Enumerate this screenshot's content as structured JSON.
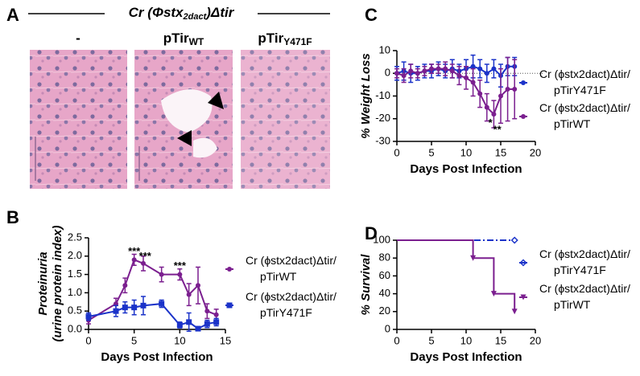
{
  "panels": [
    "A",
    "B",
    "C",
    "D"
  ],
  "panel_a": {
    "header": [
      "Cr",
      " (Φ",
      "stx",
      "2dact",
      ")Δ",
      "tir"
    ],
    "images": [
      {
        "label": [
          "-"
        ]
      },
      {
        "label": [
          "pTir",
          "WT"
        ]
      },
      {
        "label": [
          "pTir",
          "Y471F"
        ]
      }
    ]
  },
  "chart_data": [
    {
      "type": "line",
      "xlabel": "Days Post Infection",
      "ylabel": [
        "Proteinuria",
        "(urine protein index)"
      ],
      "xlim": [
        0,
        15
      ],
      "xticks": [
        0,
        5,
        10,
        15
      ],
      "ylim": [
        0,
        2.5
      ],
      "yticks": [
        {
          "value": 0,
          "label": "0.0"
        },
        0.5,
        {
          "value": 1,
          "label": "1.0"
        },
        1.5,
        {
          "value": 2,
          "label": "2.0"
        },
        2.5
      ],
      "series": [
        {
          "name": "Cr (ϕstx2dact)Δtir/ pTirWT",
          "color": "#7b1f8f",
          "marker": "circle",
          "x": [
            0,
            3,
            4,
            5,
            6,
            8,
            10,
            11,
            12,
            13,
            14
          ],
          "values": [
            0.25,
            0.7,
            1.2,
            1.9,
            1.8,
            1.5,
            1.5,
            0.95,
            1.2,
            0.5,
            0.4
          ],
          "errors": [
            0.1,
            0.15,
            0.2,
            0.15,
            0.2,
            0.2,
            0.15,
            0.3,
            0.5,
            0.2,
            0.15
          ]
        },
        {
          "name": "Cr (ϕstx2dact)Δtir/ pTirY471F",
          "color": "#1b33c9",
          "marker": "square",
          "x": [
            0,
            3,
            4,
            5,
            6,
            8,
            10,
            11,
            12,
            13,
            14
          ],
          "values": [
            0.35,
            0.5,
            0.6,
            0.6,
            0.65,
            0.7,
            0.12,
            0.2,
            0.02,
            0.15,
            0.2
          ],
          "errors": [
            0.1,
            0.15,
            0.15,
            0.2,
            0.25,
            0.1,
            0.08,
            0.25,
            0.02,
            0.1,
            0.1
          ]
        }
      ],
      "annotations": [
        {
          "text": "***",
          "x": 5,
          "y": 2.12
        },
        {
          "text": "***",
          "x": 6.2,
          "y": 1.98
        },
        {
          "text": "***",
          "x": 10,
          "y": 1.72
        }
      ]
    },
    {
      "type": "line",
      "xlabel": "Days Post Infection",
      "ylabel": [
        "% Weight Loss"
      ],
      "zero_line": true,
      "xlim": [
        0,
        20
      ],
      "xticks": [
        0,
        5,
        10,
        15,
        20
      ],
      "ylim": [
        -30,
        10
      ],
      "yticks": [
        -30,
        -20,
        -10,
        0,
        10
      ],
      "series": [
        {
          "name": "Cr (ϕstx2dact)Δtir/ pTirY471F",
          "color": "#1b33c9",
          "marker": "circle",
          "x": [
            0,
            1,
            2,
            3,
            4,
            5,
            6,
            7,
            8,
            9,
            10,
            11,
            12,
            13,
            14,
            15,
            16,
            17
          ],
          "values": [
            0,
            1,
            0,
            0,
            1,
            1,
            2,
            1,
            2,
            1,
            2,
            3,
            2,
            0,
            2,
            -1,
            3,
            3
          ],
          "errors": [
            3,
            4,
            4,
            3,
            3,
            3,
            3,
            3,
            4,
            3,
            4,
            5,
            4,
            4,
            4,
            5,
            4,
            4
          ]
        },
        {
          "name": "Cr (ϕstx2dact)Δtir/ pTirWT",
          "color": "#7b1f8f",
          "marker": "circle",
          "x": [
            0,
            1,
            2,
            3,
            4,
            5,
            6,
            7,
            8,
            9,
            10,
            11,
            12,
            13,
            14,
            15,
            16,
            17
          ],
          "values": [
            0,
            -1,
            1,
            0,
            1,
            2,
            2,
            2,
            1,
            -1,
            -2,
            -4,
            -9,
            -15,
            -18,
            -10,
            -7,
            -7
          ],
          "errors": [
            2,
            3,
            3,
            2,
            2,
            2,
            2,
            3,
            3,
            4,
            5,
            6,
            6,
            6,
            6,
            12,
            14,
            13
          ]
        }
      ],
      "annotations": [
        {
          "text": "*",
          "x": 13.5,
          "y": -22
        },
        {
          "text": "**",
          "x": 14.5,
          "y": -25
        }
      ]
    },
    {
      "type": "step",
      "xlabel": "Days Post Infection",
      "ylabel": [
        "% Survival"
      ],
      "xlim": [
        0,
        20
      ],
      "xticks": [
        0,
        5,
        10,
        15,
        20
      ],
      "ylim": [
        0,
        100
      ],
      "yticks": [
        0,
        20,
        40,
        60,
        80,
        100
      ],
      "series": [
        {
          "name": "Cr (ϕstx2dact)Δtir/ pTirY471F",
          "color": "#1b33c9",
          "marker": "diamond",
          "x": [
            0,
            17
          ],
          "values": [
            100,
            100
          ]
        },
        {
          "name": "Cr (ϕstx2dact)Δtir/ pTirWT",
          "color": "#7b1f8f",
          "marker": "triangle",
          "x": [
            0,
            11,
            14,
            17
          ],
          "values": [
            100,
            80,
            40,
            20
          ]
        }
      ],
      "annotations": []
    }
  ]
}
